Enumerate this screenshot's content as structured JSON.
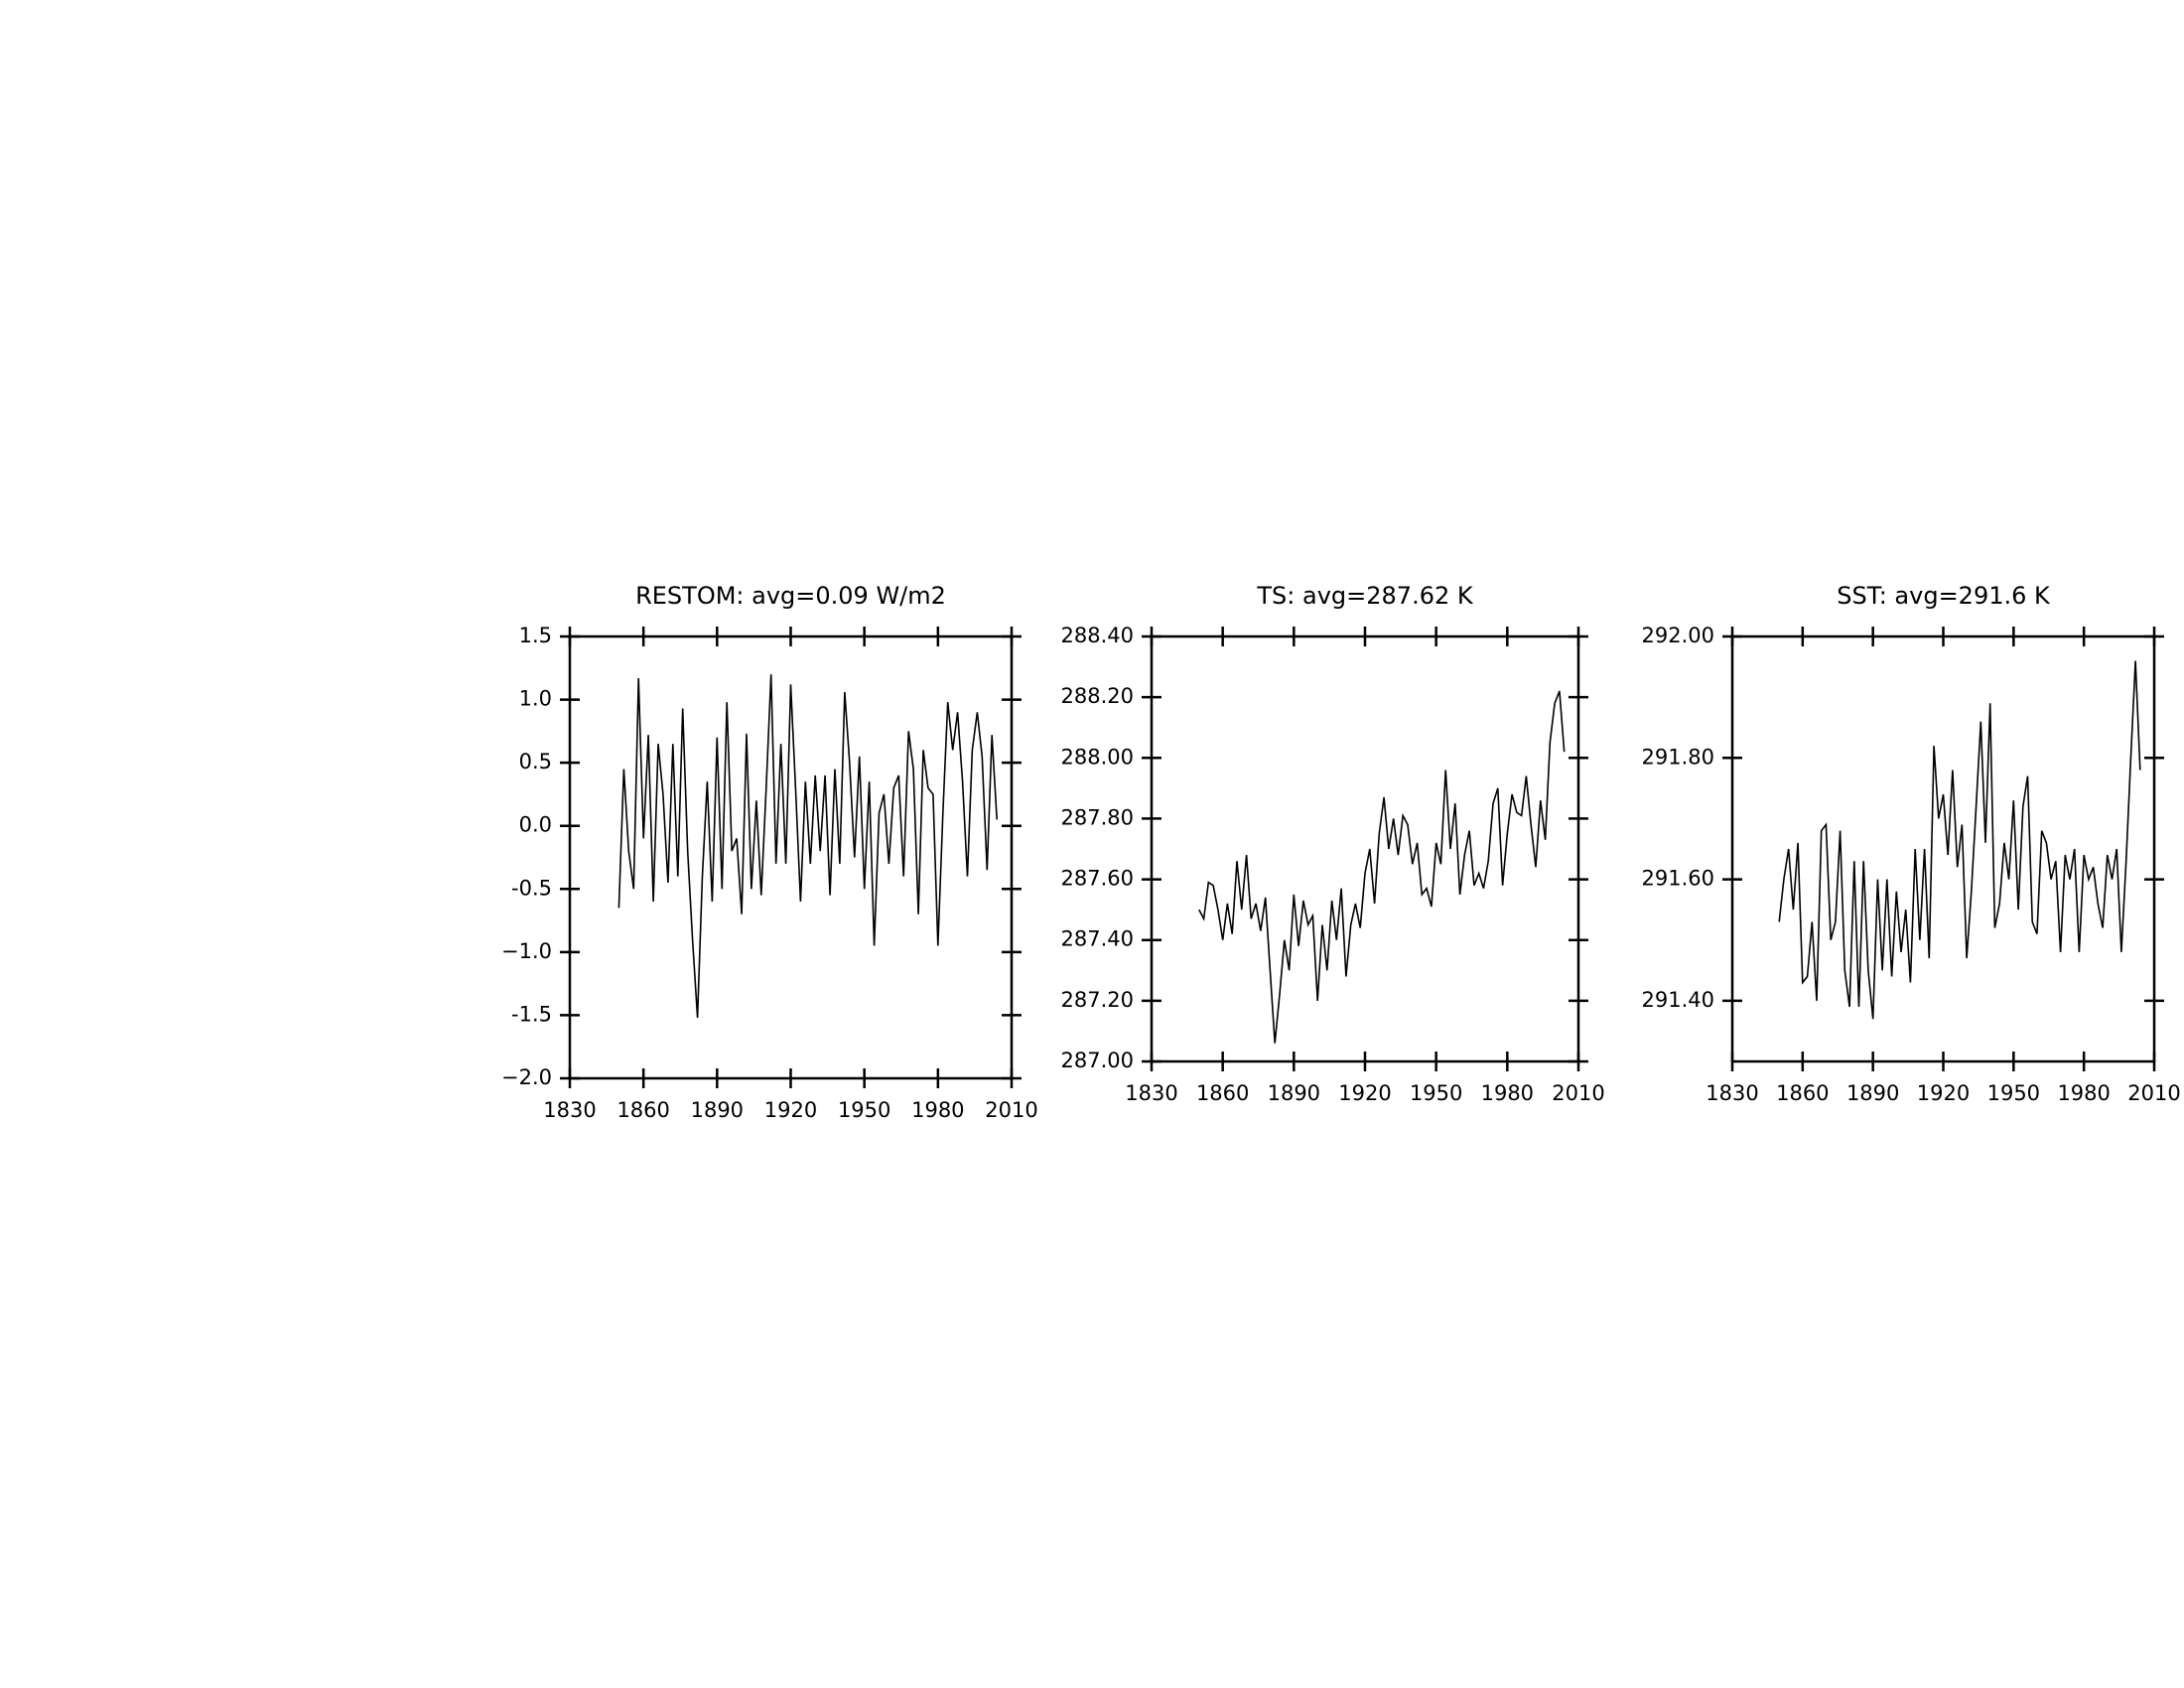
{
  "chart_data": [
    {
      "type": "line",
      "title": "RESTOM: avg=0.09 W/m2",
      "color": "#000000",
      "x": [
        1850,
        1852,
        1854,
        1856,
        1858,
        1860,
        1862,
        1864,
        1866,
        1868,
        1870,
        1872,
        1874,
        1876,
        1878,
        1880,
        1882,
        1884,
        1886,
        1888,
        1890,
        1892,
        1894,
        1896,
        1898,
        1900,
        1902,
        1904,
        1906,
        1908,
        1910,
        1912,
        1914,
        1916,
        1918,
        1920,
        1922,
        1924,
        1926,
        1928,
        1930,
        1932,
        1934,
        1936,
        1938,
        1940,
        1942,
        1944,
        1946,
        1948,
        1950,
        1952,
        1954,
        1956,
        1958,
        1960,
        1962,
        1964,
        1966,
        1968,
        1970,
        1972,
        1974,
        1976,
        1978,
        1980,
        1982,
        1984,
        1986,
        1988,
        1990,
        1992,
        1994,
        1996,
        1998,
        2000,
        2002,
        2004
      ],
      "values": [
        -0.65,
        0.45,
        -0.2,
        -0.5,
        1.17,
        -0.1,
        0.72,
        -0.6,
        0.65,
        0.25,
        -0.45,
        0.65,
        -0.4,
        0.93,
        -0.2,
        -0.9,
        -1.52,
        -0.4,
        0.35,
        -0.6,
        0.7,
        -0.5,
        0.98,
        -0.2,
        -0.1,
        -0.7,
        0.73,
        -0.5,
        0.2,
        -0.55,
        0.3,
        1.2,
        -0.3,
        0.65,
        -0.3,
        1.12,
        0.3,
        -0.6,
        0.35,
        -0.3,
        0.4,
        -0.2,
        0.4,
        -0.55,
        0.45,
        -0.3,
        1.06,
        0.5,
        -0.25,
        0.55,
        -0.5,
        0.35,
        -0.95,
        0.1,
        0.25,
        -0.3,
        0.3,
        0.4,
        -0.4,
        0.75,
        0.45,
        -0.7,
        0.6,
        0.3,
        0.25,
        -0.95,
        0.1,
        0.98,
        0.6,
        0.9,
        0.35,
        -0.4,
        0.6,
        0.9,
        0.55,
        -0.35,
        0.72,
        0.05
      ],
      "xlim": [
        1830,
        2010
      ],
      "xticks": [
        1830,
        1860,
        1890,
        1920,
        1950,
        1980,
        2010
      ],
      "ylim": [
        -2.0,
        1.5
      ],
      "yticks": [
        {
          "value": -2.0,
          "label": "−2.0"
        },
        -1.5,
        {
          "value": -1.0,
          "label": "−1.0"
        },
        -0.5,
        {
          "value": 0,
          "label": "0.0"
        },
        0.5,
        {
          "value": 1.0,
          "label": "1.0"
        },
        1.5
      ]
    },
    {
      "type": "line",
      "title": "TS: avg=287.62 K",
      "color": "#000000",
      "x": [
        1850,
        1852,
        1854,
        1856,
        1858,
        1860,
        1862,
        1864,
        1866,
        1868,
        1870,
        1872,
        1874,
        1876,
        1878,
        1880,
        1882,
        1884,
        1886,
        1888,
        1890,
        1892,
        1894,
        1896,
        1898,
        1900,
        1902,
        1904,
        1906,
        1908,
        1910,
        1912,
        1914,
        1916,
        1918,
        1920,
        1922,
        1924,
        1926,
        1928,
        1930,
        1932,
        1934,
        1936,
        1938,
        1940,
        1942,
        1944,
        1946,
        1948,
        1950,
        1952,
        1954,
        1956,
        1958,
        1960,
        1962,
        1964,
        1966,
        1968,
        1970,
        1972,
        1974,
        1976,
        1978,
        1980,
        1982,
        1984,
        1986,
        1988,
        1990,
        1992,
        1994,
        1996,
        1998,
        2000,
        2002,
        2004
      ],
      "values": [
        287.5,
        287.47,
        287.59,
        287.58,
        287.5,
        287.4,
        287.52,
        287.42,
        287.66,
        287.5,
        287.68,
        287.47,
        287.52,
        287.43,
        287.54,
        287.3,
        287.06,
        287.22,
        287.4,
        287.3,
        287.55,
        287.38,
        287.53,
        287.45,
        287.48,
        287.2,
        287.45,
        287.3,
        287.53,
        287.4,
        287.57,
        287.28,
        287.45,
        287.52,
        287.44,
        287.62,
        287.7,
        287.52,
        287.75,
        287.87,
        287.7,
        287.8,
        287.68,
        287.81,
        287.78,
        287.65,
        287.72,
        287.55,
        287.57,
        287.51,
        287.72,
        287.65,
        287.96,
        287.7,
        287.85,
        287.55,
        287.68,
        287.76,
        287.58,
        287.62,
        287.57,
        287.66,
        287.85,
        287.9,
        287.58,
        287.75,
        287.88,
        287.82,
        287.81,
        287.94,
        287.78,
        287.64,
        287.86,
        287.73,
        288.05,
        288.18,
        288.22,
        288.02
      ],
      "xlim": [
        1830,
        2010
      ],
      "xticks": [
        1830,
        1860,
        1890,
        1920,
        1950,
        1980,
        2010
      ],
      "ylim": [
        287.0,
        288.4
      ],
      "yticks": [
        {
          "value": 287.0,
          "label": "287.00"
        },
        {
          "value": 287.2,
          "label": "287.20"
        },
        {
          "value": 287.4,
          "label": "287.40"
        },
        {
          "value": 287.6,
          "label": "287.60"
        },
        {
          "value": 287.8,
          "label": "287.80"
        },
        {
          "value": 288.0,
          "label": "288.00"
        },
        {
          "value": 288.2,
          "label": "288.20"
        },
        {
          "value": 288.4,
          "label": "288.40"
        }
      ]
    },
    {
      "type": "line",
      "title": "SST: avg=291.6 K",
      "color": "#000000",
      "x": [
        1850,
        1852,
        1854,
        1856,
        1858,
        1860,
        1862,
        1864,
        1866,
        1868,
        1870,
        1872,
        1874,
        1876,
        1878,
        1880,
        1882,
        1884,
        1886,
        1888,
        1890,
        1892,
        1894,
        1896,
        1898,
        1900,
        1902,
        1904,
        1906,
        1908,
        1910,
        1912,
        1914,
        1916,
        1918,
        1920,
        1922,
        1924,
        1926,
        1928,
        1930,
        1932,
        1934,
        1936,
        1938,
        1940,
        1942,
        1944,
        1946,
        1948,
        1950,
        1952,
        1954,
        1956,
        1958,
        1960,
        1962,
        1964,
        1966,
        1968,
        1970,
        1972,
        1974,
        1976,
        1978,
        1980,
        1982,
        1984,
        1986,
        1988,
        1990,
        1992,
        1994,
        1996,
        1998,
        2000,
        2002,
        2004
      ],
      "values": [
        291.53,
        291.6,
        291.65,
        291.55,
        291.66,
        291.43,
        291.44,
        291.53,
        291.4,
        291.68,
        291.69,
        291.5,
        291.53,
        291.68,
        291.45,
        291.39,
        291.63,
        291.39,
        291.63,
        291.45,
        291.37,
        291.6,
        291.45,
        291.6,
        291.44,
        291.58,
        291.48,
        291.55,
        291.43,
        291.65,
        291.5,
        291.65,
        291.47,
        291.82,
        291.7,
        291.74,
        291.64,
        291.78,
        291.62,
        291.69,
        291.47,
        291.58,
        291.72,
        291.86,
        291.66,
        291.89,
        291.52,
        291.56,
        291.66,
        291.6,
        291.73,
        291.55,
        291.72,
        291.77,
        291.53,
        291.51,
        291.68,
        291.66,
        291.6,
        291.63,
        291.48,
        291.64,
        291.6,
        291.65,
        291.48,
        291.64,
        291.6,
        291.62,
        291.56,
        291.52,
        291.64,
        291.6,
        291.65,
        291.48,
        291.63,
        291.8,
        291.96,
        291.78
      ],
      "xlim": [
        1830,
        2010
      ],
      "xticks": [
        1830,
        1860,
        1890,
        1920,
        1950,
        1980,
        2010
      ],
      "ylim": [
        291.3,
        292.0
      ],
      "yticks": [
        {
          "value": 291.4,
          "label": "291.40"
        },
        {
          "value": 291.6,
          "label": "291.60"
        },
        {
          "value": 291.8,
          "label": "291.80"
        },
        {
          "value": 292.0,
          "label": "292.00"
        }
      ]
    }
  ]
}
